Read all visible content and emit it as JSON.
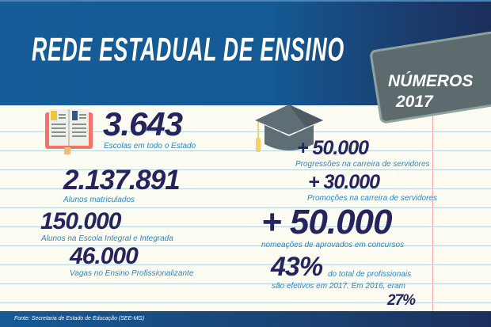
{
  "header": {
    "title": "REDE ESTADUAL DE ENSINO"
  },
  "tag": {
    "line1": "NÚMEROS",
    "line2": "2017"
  },
  "stats": {
    "schools": {
      "value": "3.643",
      "label": "Escolas em todo o Estado"
    },
    "students": {
      "value": "2.137.891",
      "label": "Alunos matriculados"
    },
    "integral": {
      "value": "150.000",
      "label": "Alunos na Escola Integral e Integrada"
    },
    "vagas": {
      "value": "46.000",
      "label": "Vagas no Ensino Profissionalizante"
    },
    "progressoes": {
      "value": "+ 50.000",
      "label": "Progressões na carreira de servidores"
    },
    "promocoes": {
      "value": "+ 30.000",
      "label": "Promoções na carreira de servidores"
    },
    "nomeacoes": {
      "value": "+ 50.000",
      "label": "nomeações de aprovados em concursos"
    },
    "efetivos": {
      "value": "43%",
      "label_part1": "do total de profissionais",
      "label_part2": "são efetivos em 2017. Em 2016, eram",
      "previous": "27%"
    }
  },
  "footer": {
    "source": "Fonte: Secretaria de Estado de Educação (SEE-MG)"
  },
  "icons": {
    "book": "book-icon",
    "cap": "graduation-cap-icon"
  },
  "colors": {
    "header": "#165c98",
    "number": "#25245f",
    "caption": "#2a86c8",
    "tag": "#5e6b6e",
    "margin": "#f0a5a8"
  }
}
